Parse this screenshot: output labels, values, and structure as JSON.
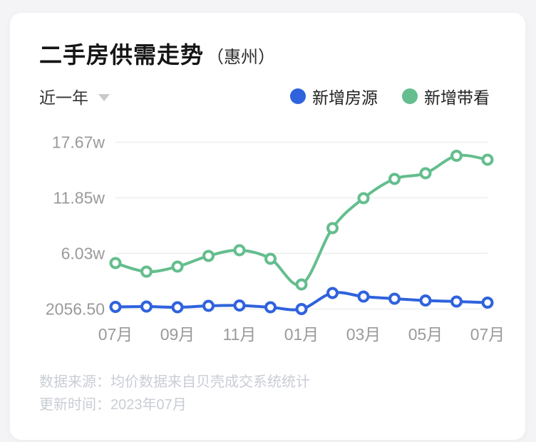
{
  "card": {
    "title": "二手房供需走势",
    "title_suffix": "（惠州）",
    "filter": {
      "label": "近一年"
    },
    "legend": [
      {
        "label": "新增房源",
        "color": "#2f62dd"
      },
      {
        "label": "新增带看",
        "color": "#64be8e"
      }
    ],
    "footer": {
      "source_line": "数据来源：均价数据来自贝壳成交系统统计",
      "update_line": "更新时间：2023年07月"
    }
  },
  "colors": {
    "listings_blue": "#2f62dd",
    "viewings_green": "#64be8e",
    "axis_text": "#9a9a9a",
    "gridline": "#eeeeee"
  },
  "chart_data": {
    "type": "line",
    "title": "二手房供需走势（惠州）",
    "x_tick_labels": [
      "07月",
      "09月",
      "11月",
      "01月",
      "03月",
      "05月",
      "07月"
    ],
    "x_label_every": 2,
    "points_per_series": 13,
    "y_ticks": [
      {
        "label": "17.67w",
        "value": 176700
      },
      {
        "label": "11.85w",
        "value": 118500
      },
      {
        "label": "6.03w",
        "value": 60300
      },
      {
        "label": "2056.50",
        "value": 2056.5
      }
    ],
    "y_range": [
      2056.5,
      176700
    ],
    "grid": "horizontal",
    "legend_position": "top-right",
    "series": [
      {
        "name": "新增房源",
        "color": "#2f62dd",
        "values": [
          4300,
          4650,
          3900,
          5400,
          5800,
          3900,
          2056.5,
          18850,
          15100,
          12900,
          11000,
          9900,
          8800
        ]
      },
      {
        "name": "新增带看",
        "color": "#64be8e",
        "values": [
          50200,
          41200,
          46500,
          57700,
          63600,
          54700,
          27800,
          86800,
          118100,
          138300,
          144200,
          162500,
          158400
        ]
      }
    ]
  }
}
